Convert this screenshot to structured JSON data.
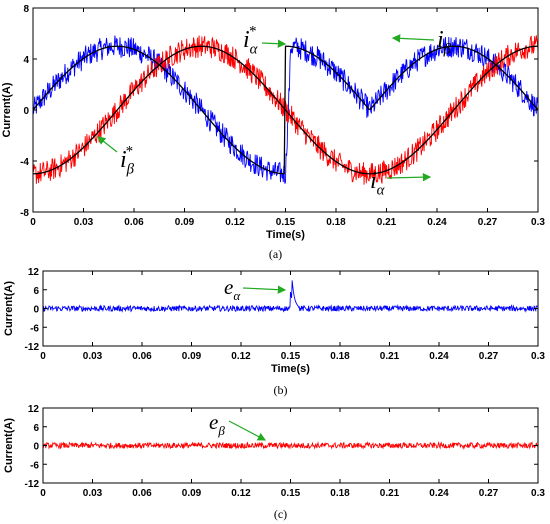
{
  "chart_data": [
    {
      "id": "a",
      "type": "line",
      "caption": "(a)",
      "xlabel": "Time(s)",
      "ylabel": "Current(A)",
      "xlim": [
        0,
        0.3
      ],
      "ylim": [
        -8,
        8
      ],
      "xticks": [
        "0",
        "0.03",
        "0.06",
        "0.09",
        "0.12",
        "0.15",
        "0.18",
        "0.21",
        "0.24",
        "0.27",
        "0.3"
      ],
      "yticks": [
        "8",
        "4",
        "0",
        "-4",
        "-8"
      ],
      "amplitude": 5,
      "frequency_hz": 5,
      "event_time": 0.15,
      "series": [
        {
          "name": "i_α",
          "label": "i",
          "subscript": "α",
          "color": "#0000ff",
          "phase": "sin",
          "noise": 0.9
        },
        {
          "name": "i_β",
          "label": "i",
          "subscript": "β",
          "color": "#ff0000",
          "phase": "-cos",
          "noise": 0.9
        },
        {
          "name": "i_α*",
          "label": "i",
          "subscript": "α",
          "superscript": "*",
          "color": "#000000",
          "phase": "sin|abs-after-event"
        },
        {
          "name": "i_β*",
          "label": "i",
          "subscript": "β",
          "superscript": "*",
          "color": "#000000",
          "phase": "-cos"
        }
      ],
      "annotations": [
        {
          "series": "i_α*",
          "text": "i",
          "subscript": "α",
          "superscript": "*"
        },
        {
          "series": "i_β",
          "text": "i",
          "subscript": "β"
        },
        {
          "series": "i_β*",
          "text": "i",
          "subscript": "β",
          "superscript": "*"
        },
        {
          "series": "i_α",
          "text": "i",
          "subscript": "α"
        }
      ]
    },
    {
      "id": "b",
      "type": "line",
      "caption": "(b)",
      "xlabel": "Time(s)",
      "ylabel": "Current(A)",
      "xlim": [
        0,
        0.3
      ],
      "ylim": [
        -12,
        12
      ],
      "xticks": [
        "0",
        "0.03",
        "0.06",
        "0.09",
        "0.12",
        "0.15",
        "0.18",
        "0.21",
        "0.24",
        "0.27",
        "0.3"
      ],
      "yticks": [
        "12",
        "6",
        "0",
        "-6",
        "-12"
      ],
      "series": [
        {
          "name": "e_α",
          "label": "e",
          "subscript": "α",
          "color": "#0000ff",
          "noise": 0.9,
          "spike_time": 0.151,
          "spike_peak": 9
        }
      ],
      "annotations": [
        {
          "series": "e_α",
          "text": "e",
          "subscript": "α"
        }
      ]
    },
    {
      "id": "c",
      "type": "line",
      "caption": "(c)",
      "xlabel": "",
      "ylabel": "Current(A)",
      "xlim": [
        0,
        0.3
      ],
      "ylim": [
        -12,
        12
      ],
      "xticks": [
        "0",
        "0.03",
        "0.06",
        "0.09",
        "0.12",
        "0.15",
        "0.18",
        "0.21",
        "0.24",
        "0.27",
        "0.3"
      ],
      "yticks": [
        "12",
        "6",
        "0",
        "-6",
        "-12"
      ],
      "series": [
        {
          "name": "e_β",
          "label": "e",
          "subscript": "β",
          "color": "#ff0000",
          "noise": 0.9
        }
      ],
      "annotations": [
        {
          "series": "e_β",
          "text": "e",
          "subscript": "β"
        }
      ]
    }
  ]
}
